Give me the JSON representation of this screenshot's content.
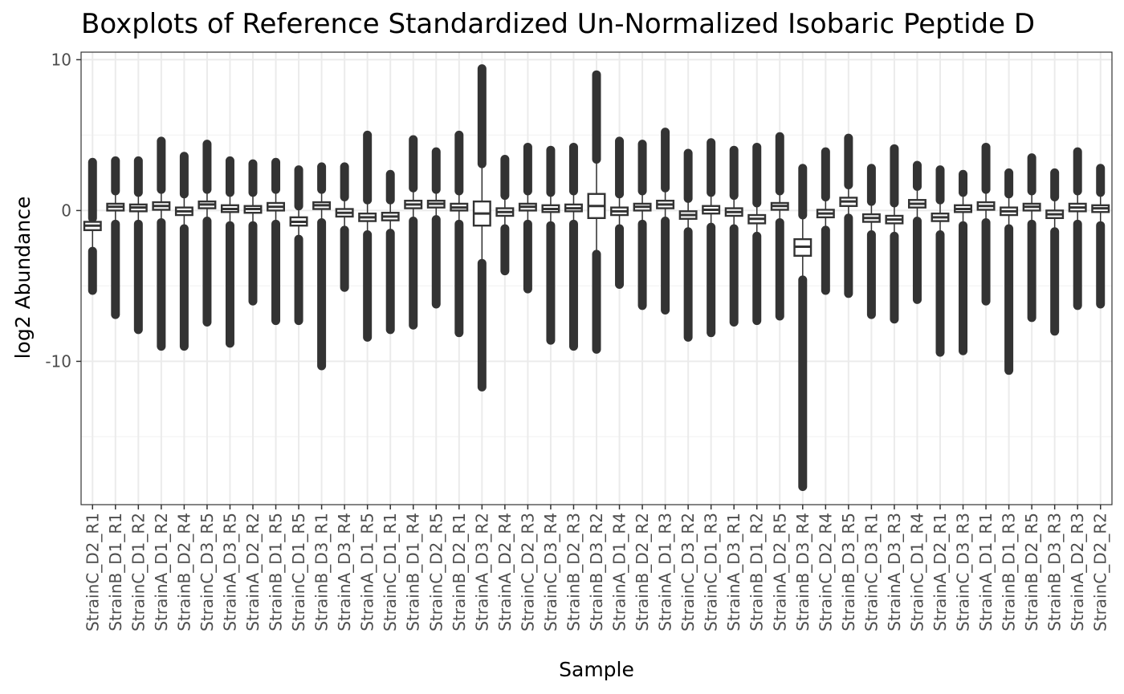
{
  "chart_data": {
    "type": "boxplot",
    "title": "Boxplots of Reference Standardized Un-Normalized Isobaric Peptide D",
    "xlabel": "Sample",
    "ylabel": "log2 Abundance",
    "ylim": [
      -19.5,
      10.5
    ],
    "y_ticks": [
      10,
      0,
      -10
    ],
    "y_tick_labels": [
      "10",
      "0",
      "-10"
    ],
    "grid": true,
    "legend": "none",
    "colors": {
      "box_fill": "#ffffff",
      "box_stroke": "#333333",
      "outlier": "#333333",
      "grid_major": "#ebebeb",
      "grid_minor": "#f4f4f4",
      "panel_border": "#333333"
    },
    "categories": [
      "StrainC_D2_R1",
      "StrainB_D1_R1",
      "StrainC_D1_R2",
      "StrainA_D1_R2",
      "StrainB_D2_R4",
      "StrainC_D3_R5",
      "StrainA_D3_R5",
      "StrainA_D2_R2",
      "StrainB_D1_R5",
      "StrainC_D1_R5",
      "StrainB_D3_R1",
      "StrainA_D3_R4",
      "StrainA_D1_R5",
      "StrainC_D1_R1",
      "StrainB_D1_R4",
      "StrainC_D2_R5",
      "StrainB_D2_R1",
      "StrainA_D3_R2",
      "StrainA_D2_R4",
      "StrainC_D2_R3",
      "StrainC_D3_R4",
      "StrainB_D2_R3",
      "StrainB_D3_R2",
      "StrainA_D1_R4",
      "StrainB_D2_R2",
      "StrainA_D1_R3",
      "StrainC_D3_R2",
      "StrainC_D1_R3",
      "StrainA_D3_R1",
      "StrainB_D1_R2",
      "StrainA_D2_R5",
      "StrainB_D3_R4",
      "StrainC_D2_R4",
      "StrainB_D3_R5",
      "StrainC_D3_R1",
      "StrainA_D3_R3",
      "StrainC_D1_R4",
      "StrainA_D2_R1",
      "StrainC_D3_R3",
      "StrainA_D1_R1",
      "StrainB_D1_R3",
      "StrainB_D2_R5",
      "StrainB_D3_R3",
      "StrainA_D2_R3",
      "StrainC_D2_R2"
    ],
    "boxes": [
      {
        "q1": -1.3,
        "median": -1.0,
        "q3": -0.75,
        "lw": -2.7,
        "uw": -0.5,
        "min": -5.3,
        "max": 3.2
      },
      {
        "q1": 0.0,
        "median": 0.25,
        "q3": 0.45,
        "lw": -0.9,
        "uw": 1.3,
        "min": -6.9,
        "max": 3.3
      },
      {
        "q1": -0.05,
        "median": 0.2,
        "q3": 0.4,
        "lw": -0.9,
        "uw": 1.2,
        "min": -7.9,
        "max": 3.3
      },
      {
        "q1": 0.05,
        "median": 0.3,
        "q3": 0.55,
        "lw": -0.8,
        "uw": 1.4,
        "min": -9.0,
        "max": 4.6
      },
      {
        "q1": -0.3,
        "median": -0.05,
        "q3": 0.2,
        "lw": -1.2,
        "uw": 1.1,
        "min": -9.0,
        "max": 3.6
      },
      {
        "q1": 0.15,
        "median": 0.4,
        "q3": 0.6,
        "lw": -0.7,
        "uw": 1.4,
        "min": -7.4,
        "max": 4.4
      },
      {
        "q1": -0.1,
        "median": 0.1,
        "q3": 0.35,
        "lw": -1.0,
        "uw": 1.2,
        "min": -8.8,
        "max": 3.3
      },
      {
        "q1": -0.15,
        "median": 0.1,
        "q3": 0.3,
        "lw": -1.0,
        "uw": 1.2,
        "min": -6.0,
        "max": 3.1
      },
      {
        "q1": 0.0,
        "median": 0.25,
        "q3": 0.5,
        "lw": -0.9,
        "uw": 1.4,
        "min": -7.3,
        "max": 3.2
      },
      {
        "q1": -1.0,
        "median": -0.75,
        "q3": -0.45,
        "lw": -1.9,
        "uw": 0.3,
        "min": -7.3,
        "max": 2.7
      },
      {
        "q1": 0.1,
        "median": 0.35,
        "q3": 0.55,
        "lw": -0.8,
        "uw": 1.4,
        "min": -10.3,
        "max": 2.9
      },
      {
        "q1": -0.4,
        "median": -0.15,
        "q3": 0.1,
        "lw": -1.3,
        "uw": 0.9,
        "min": -5.1,
        "max": 2.9
      },
      {
        "q1": -0.7,
        "median": -0.45,
        "q3": -0.2,
        "lw": -1.6,
        "uw": 0.7,
        "min": -8.4,
        "max": 5.0
      },
      {
        "q1": -0.65,
        "median": -0.4,
        "q3": -0.15,
        "lw": -1.5,
        "uw": 0.7,
        "min": -7.9,
        "max": 2.4
      },
      {
        "q1": 0.15,
        "median": 0.4,
        "q3": 0.65,
        "lw": -0.7,
        "uw": 1.5,
        "min": -7.6,
        "max": 4.7
      },
      {
        "q1": 0.2,
        "median": 0.45,
        "q3": 0.65,
        "lw": -0.6,
        "uw": 1.4,
        "min": -6.2,
        "max": 3.9
      },
      {
        "q1": 0.0,
        "median": 0.2,
        "q3": 0.45,
        "lw": -0.9,
        "uw": 1.3,
        "min": -8.1,
        "max": 5.0
      },
      {
        "q1": -1.0,
        "median": -0.2,
        "q3": 0.6,
        "lw": -3.5,
        "uw": 3.1,
        "min": -11.7,
        "max": 9.4
      },
      {
        "q1": -0.35,
        "median": -0.1,
        "q3": 0.15,
        "lw": -1.2,
        "uw": 1.0,
        "min": -4.0,
        "max": 3.4
      },
      {
        "q1": 0.0,
        "median": 0.25,
        "q3": 0.45,
        "lw": -0.9,
        "uw": 1.3,
        "min": -5.2,
        "max": 4.2
      },
      {
        "q1": -0.1,
        "median": 0.1,
        "q3": 0.35,
        "lw": -1.0,
        "uw": 1.2,
        "min": -8.6,
        "max": 4.0
      },
      {
        "q1": -0.05,
        "median": 0.15,
        "q3": 0.4,
        "lw": -0.9,
        "uw": 1.3,
        "min": -9.0,
        "max": 4.2
      },
      {
        "q1": -0.5,
        "median": 0.3,
        "q3": 1.1,
        "lw": -2.9,
        "uw": 3.4,
        "min": -9.2,
        "max": 9.0
      },
      {
        "q1": -0.3,
        "median": -0.05,
        "q3": 0.2,
        "lw": -1.2,
        "uw": 1.1,
        "min": -4.9,
        "max": 4.6
      },
      {
        "q1": 0.0,
        "median": 0.25,
        "q3": 0.45,
        "lw": -0.9,
        "uw": 1.3,
        "min": -6.3,
        "max": 4.4
      },
      {
        "q1": 0.15,
        "median": 0.4,
        "q3": 0.65,
        "lw": -0.7,
        "uw": 1.5,
        "min": -6.6,
        "max": 5.2
      },
      {
        "q1": -0.55,
        "median": -0.3,
        "q3": -0.05,
        "lw": -1.4,
        "uw": 0.8,
        "min": -8.4,
        "max": 3.8
      },
      {
        "q1": -0.2,
        "median": 0.05,
        "q3": 0.3,
        "lw": -1.1,
        "uw": 1.2,
        "min": -8.1,
        "max": 4.5
      },
      {
        "q1": -0.35,
        "median": -0.1,
        "q3": 0.15,
        "lw": -1.2,
        "uw": 1.0,
        "min": -7.4,
        "max": 4.0
      },
      {
        "q1": -0.85,
        "median": -0.55,
        "q3": -0.3,
        "lw": -1.7,
        "uw": 0.5,
        "min": -7.3,
        "max": 4.2
      },
      {
        "q1": 0.05,
        "median": 0.3,
        "q3": 0.5,
        "lw": -0.8,
        "uw": 1.3,
        "min": -7.0,
        "max": 4.9
      },
      {
        "q1": -3.0,
        "median": -2.4,
        "q3": -1.9,
        "lw": -4.6,
        "uw": -0.3,
        "min": -18.3,
        "max": 2.8
      },
      {
        "q1": -0.45,
        "median": -0.2,
        "q3": 0.05,
        "lw": -1.3,
        "uw": 0.9,
        "min": -5.3,
        "max": 3.9
      },
      {
        "q1": 0.3,
        "median": 0.6,
        "q3": 0.85,
        "lw": -0.5,
        "uw": 1.7,
        "min": -5.5,
        "max": 4.8
      },
      {
        "q1": -0.75,
        "median": -0.5,
        "q3": -0.25,
        "lw": -1.6,
        "uw": 0.6,
        "min": -6.9,
        "max": 2.8
      },
      {
        "q1": -0.85,
        "median": -0.6,
        "q3": -0.35,
        "lw": -1.7,
        "uw": 0.5,
        "min": -7.2,
        "max": 4.1
      },
      {
        "q1": 0.2,
        "median": 0.45,
        "q3": 0.7,
        "lw": -0.7,
        "uw": 1.6,
        "min": -5.9,
        "max": 3.0
      },
      {
        "q1": -0.7,
        "median": -0.45,
        "q3": -0.2,
        "lw": -1.6,
        "uw": 0.7,
        "min": -9.4,
        "max": 2.7
      },
      {
        "q1": -0.1,
        "median": 0.1,
        "q3": 0.35,
        "lw": -1.0,
        "uw": 1.2,
        "min": -9.3,
        "max": 2.4
      },
      {
        "q1": 0.05,
        "median": 0.3,
        "q3": 0.55,
        "lw": -0.8,
        "uw": 1.4,
        "min": -6.0,
        "max": 4.2
      },
      {
        "q1": -0.3,
        "median": -0.05,
        "q3": 0.2,
        "lw": -1.2,
        "uw": 1.1,
        "min": -10.6,
        "max": 2.5
      },
      {
        "q1": 0.0,
        "median": 0.25,
        "q3": 0.45,
        "lw": -0.9,
        "uw": 1.3,
        "min": -7.1,
        "max": 3.5
      },
      {
        "q1": -0.5,
        "median": -0.25,
        "q3": 0.0,
        "lw": -1.4,
        "uw": 0.9,
        "min": -8.0,
        "max": 2.5
      },
      {
        "q1": -0.05,
        "median": 0.2,
        "q3": 0.45,
        "lw": -0.9,
        "uw": 1.3,
        "min": -6.3,
        "max": 3.9
      },
      {
        "q1": -0.1,
        "median": 0.15,
        "q3": 0.35,
        "lw": -1.0,
        "uw": 1.2,
        "min": -6.2,
        "max": 2.8
      }
    ]
  }
}
